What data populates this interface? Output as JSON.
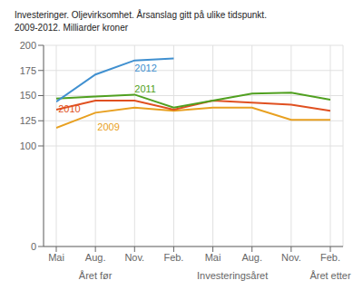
{
  "chart_data": {
    "type": "line",
    "title": "Investeringer. Oljevirksomhet. Årsanslag gitt på ulike tidspunkt.\n2009-2012. Milliarder kroner",
    "categories": [
      "Mai",
      "Aug.",
      "Nov.",
      "Feb.",
      "Mai",
      "Aug.",
      "Nov.",
      "Feb."
    ],
    "series": [
      {
        "name": "2009",
        "color": "#E8A020",
        "values": [
          118,
          133,
          138,
          135,
          138,
          138,
          126,
          126
        ]
      },
      {
        "name": "2010",
        "color": "#E05020",
        "values": [
          136,
          145,
          145,
          136,
          145,
          143,
          141,
          135
        ]
      },
      {
        "name": "2011",
        "color": "#50A020",
        "values": [
          147,
          149,
          151,
          138,
          145,
          152,
          153,
          146
        ]
      },
      {
        "name": "2012",
        "color": "#4090D0",
        "values": [
          144,
          171,
          185,
          187,
          null,
          null,
          null,
          null
        ]
      }
    ],
    "ylim": [
      0,
      200
    ],
    "yticks": [
      0,
      100,
      125,
      150,
      175,
      200
    ],
    "grid": true,
    "annotations": [
      {
        "text": "2012",
        "x": 2.0,
        "y": 174
      },
      {
        "text": "2011",
        "x": 2.0,
        "y": 153
      },
      {
        "text": "2010",
        "x": 0.05,
        "y": 133
      },
      {
        "text": "2009",
        "x": 1.05,
        "y": 115
      }
    ],
    "sublabels": [
      {
        "label": "Året før",
        "x": 1.0
      },
      {
        "label": "Investeringsåret",
        "x": 4.5
      },
      {
        "label": "Året etter",
        "x": 7.0
      }
    ]
  }
}
